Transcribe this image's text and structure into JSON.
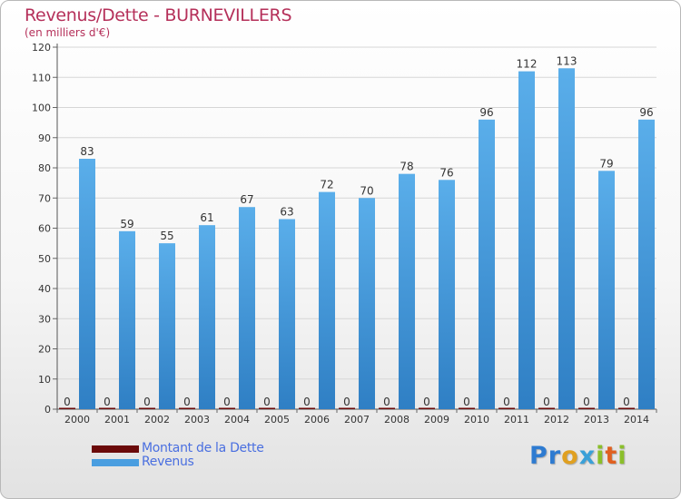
{
  "chart_data": {
    "type": "bar",
    "title": "Revenus/Dette - BURNEVILLERS",
    "subtitle": "(en milliers d'€)",
    "categories": [
      "2000",
      "2001",
      "2002",
      "2003",
      "2004",
      "2005",
      "2006",
      "2007",
      "2008",
      "2009",
      "2010",
      "2011",
      "2012",
      "2013",
      "2014"
    ],
    "series": [
      {
        "name": "Montant de la Dette",
        "color": "#6b0a0a",
        "values": [
          0,
          0,
          0,
          0,
          0,
          0,
          0,
          0,
          0,
          0,
          0,
          0,
          0,
          0,
          0
        ]
      },
      {
        "name": "Revenus",
        "color": "#4a9ee0",
        "values": [
          83,
          59,
          55,
          61,
          67,
          63,
          72,
          70,
          78,
          76,
          96,
          112,
          113,
          79,
          96
        ]
      }
    ],
    "ylim": [
      0,
      120
    ],
    "yticks": [
      0,
      10,
      20,
      30,
      40,
      50,
      60,
      70,
      80,
      90,
      100,
      110,
      120
    ],
    "grid": true,
    "legend": "bottom-left"
  },
  "logo": {
    "text": "Proxiti",
    "letters": [
      "P",
      "r",
      "o",
      "x",
      "i",
      "t",
      "i"
    ]
  }
}
